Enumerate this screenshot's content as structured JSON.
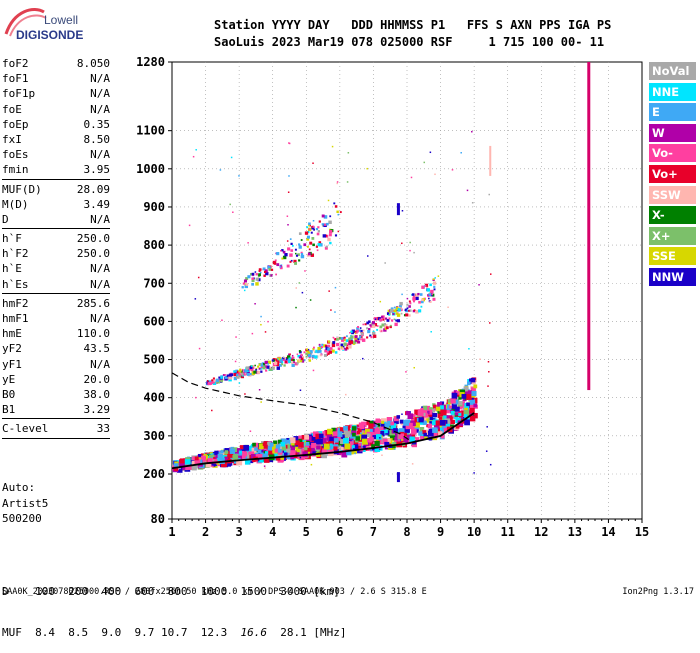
{
  "logo": {
    "line1": "Lowell",
    "line2": "DIGISONDE"
  },
  "header": {
    "line1": "Station YYYY DAY   DDD HHMMSS P1   FFS S AXN PPS IGA PS",
    "line2": "SaoLuis 2023 Mar19 078 025000 RSF     1 715 100 00- 11"
  },
  "params_group1": [
    {
      "name": "foF2",
      "value": "8.050"
    },
    {
      "name": "foF1",
      "value": "N/A"
    },
    {
      "name": "foF1p",
      "value": "N/A"
    },
    {
      "name": "foE",
      "value": "N/A"
    },
    {
      "name": "foEp",
      "value": "0.35"
    },
    {
      "name": "fxI",
      "value": "8.50"
    },
    {
      "name": "foEs",
      "value": "N/A"
    },
    {
      "name": "fmin",
      "value": "3.95"
    }
  ],
  "params_group2": [
    {
      "name": "MUF(D)",
      "value": "28.09"
    },
    {
      "name": "M(D)",
      "value": "3.49"
    },
    {
      "name": "D",
      "value": "N/A"
    }
  ],
  "params_group3": [
    {
      "name": "h`F",
      "value": "250.0"
    },
    {
      "name": "h`F2",
      "value": "250.0"
    },
    {
      "name": "h`E",
      "value": "N/A"
    },
    {
      "name": "h`Es",
      "value": "N/A"
    }
  ],
  "params_group4": [
    {
      "name": "hmF2",
      "value": "285.6"
    },
    {
      "name": "hmF1",
      "value": "N/A"
    },
    {
      "name": "hmE",
      "value": "110.0"
    },
    {
      "name": "yF2",
      "value": "43.5"
    },
    {
      "name": "yF1",
      "value": "N/A"
    },
    {
      "name": "yE",
      "value": "20.0"
    },
    {
      "name": "B0",
      "value": "38.0"
    },
    {
      "name": "B1",
      "value": "3.29"
    }
  ],
  "params_group5": [
    {
      "name": "C-level",
      "value": "33"
    }
  ],
  "auto": {
    "line1": "Auto:",
    "line2": "Artist5",
    "line3": "500200"
  },
  "legend": [
    {
      "label": "NoVal",
      "color": "#a9a9a9"
    },
    {
      "label": "NNE",
      "color": "#00e5ff"
    },
    {
      "label": "E",
      "color": "#3fa9f5"
    },
    {
      "label": "W",
      "color": "#b000a8"
    },
    {
      "label": "Vo-",
      "color": "#ff3fa0"
    },
    {
      "label": "Vo+",
      "color": "#e8002a"
    },
    {
      "label": "SSW",
      "color": "#ffb6b0"
    },
    {
      "label": "X-",
      "color": "#008000"
    },
    {
      "label": "X+",
      "color": "#7cc06a"
    },
    {
      "label": "SSE",
      "color": "#d7d700"
    },
    {
      "label": "NNW",
      "color": "#1a00c8"
    }
  ],
  "muf_table": {
    "d_label": "D",
    "d_values": [
      "100",
      "200",
      "400",
      "600",
      "800",
      "1000",
      "1500",
      "3000"
    ],
    "d_unit": "[km]",
    "muf_label": "MUF",
    "muf_values": [
      "8.4",
      "8.5",
      "9.0",
      "9.7",
      "10.7",
      "12.3",
      "16.6",
      "28.1"
    ],
    "muf_unit": "[MHz]"
  },
  "footer": {
    "left": "SAA0K_2023078025000.RSF / 280fx256h 50 kHz 5.0 km / DPS-4 SAA0K 903 / 2.6 S 315.8 E",
    "right": "Ion2Png 1.3.17"
  },
  "chart_data": {
    "type": "scatter",
    "x_ticks": [
      "1",
      "2",
      "3",
      "4",
      "5",
      "6",
      "7",
      "8",
      "9",
      "10",
      "11",
      "12",
      "13",
      "14",
      "15"
    ],
    "y_ticks": [
      "80",
      "200",
      "300",
      "400",
      "500",
      "600",
      "700",
      "800",
      "900",
      "1000",
      "1100",
      "1280"
    ],
    "xlim": [
      1,
      15
    ],
    "y_scale": "nonlinear (ionogram virtual height)",
    "grid": "dotted",
    "dashed_profile": [
      [
        1.0,
        465
      ],
      [
        1.5,
        440
      ],
      [
        2.0,
        425
      ],
      [
        3.0,
        405
      ],
      [
        4.0,
        392
      ],
      [
        5.0,
        380
      ],
      [
        6.0,
        360
      ],
      [
        7.0,
        335
      ],
      [
        7.8,
        305
      ],
      [
        8.05,
        290
      ]
    ],
    "trace_lower": [
      [
        1.0,
        215
      ],
      [
        2.0,
        228
      ],
      [
        3.0,
        236
      ],
      [
        4.0,
        243
      ],
      [
        5.0,
        250
      ],
      [
        6.0,
        258
      ],
      [
        7.0,
        268
      ],
      [
        8.0,
        280
      ],
      [
        9.0,
        300
      ],
      [
        9.5,
        330
      ],
      [
        10.0,
        360
      ]
    ],
    "trace_second": [
      [
        2.0,
        435
      ],
      [
        3.0,
        458
      ],
      [
        4.0,
        478
      ],
      [
        5.0,
        498
      ],
      [
        6.0,
        525
      ],
      [
        7.0,
        565
      ],
      [
        8.0,
        610
      ],
      [
        8.8,
        660
      ]
    ],
    "trace_third": [
      [
        3.0,
        680
      ],
      [
        4.0,
        720
      ],
      [
        5.0,
        770
      ],
      [
        6.0,
        810
      ]
    ],
    "vertical_band": {
      "x": 13.4,
      "y_range": [
        420,
        1280
      ]
    }
  }
}
